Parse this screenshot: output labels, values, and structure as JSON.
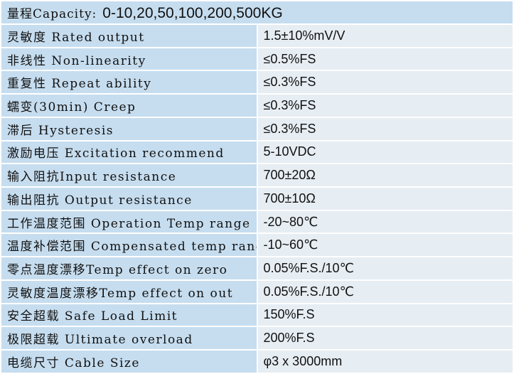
{
  "header": {
    "label": "量程Capacity:",
    "value": "0-10,20,50,100,200,500KG"
  },
  "table": {
    "rows": [
      [
        "灵敏度 Rated output",
        "1.5±10%mV/V"
      ],
      [
        "非线性 Non-linearity",
        "≤0.5%FS"
      ],
      [
        "重复性 Repeat ability",
        "≤0.3%FS"
      ],
      [
        "蠕变(30min) Creep",
        "≤0.3%FS"
      ],
      [
        "滞后 Hysteresis",
        "≤0.3%FS"
      ],
      [
        "激励电压 Excitation recommend",
        "5-10VDC"
      ],
      [
        "输入阻抗Input resistance",
        "700±20Ω"
      ],
      [
        "输出阻抗 Output resistance",
        "700±10Ω"
      ],
      [
        "工作温度范围 Operation Temp range",
        "-20~80℃"
      ],
      [
        "温度补偿范围 Compensated temp range",
        "-10~60℃"
      ],
      [
        "零点温度漂移Temp effect on zero",
        "0.05%F.S./10℃"
      ],
      [
        "灵敏度温度漂移Temp effect on out",
        "0.05%F.S./10℃"
      ],
      [
        "安全超载 Safe Load Limit",
        "150%F.S"
      ],
      [
        "极限超载 Ultimate overload",
        "200%F.S"
      ],
      [
        "电缆尺寸 Cable Size",
        "φ3 x 3000mm"
      ]
    ]
  }
}
